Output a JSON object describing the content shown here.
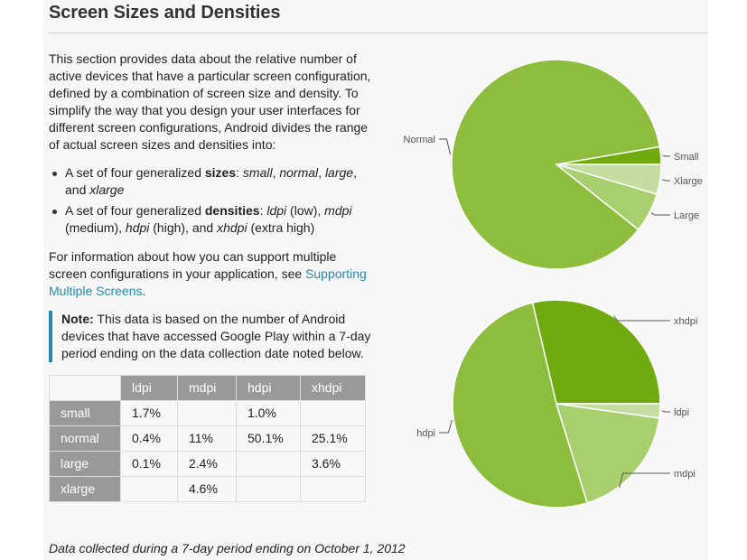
{
  "section": {
    "title": "Screen Sizes and Densities",
    "intro": "This section provides data about the relative number of active devices that have a particular screen configuration, defined by a combination of screen size and density. To simplify the way that you design your user interfaces for different screen configurations, Android divides the range of actual screen sizes and densities into:",
    "bullets": [
      {
        "prefix": "A set of four generalized ",
        "bold": "sizes",
        "rest_parts": [
          ": ",
          "small",
          ", ",
          "normal",
          ", ",
          "large",
          ", and ",
          "xlarge"
        ]
      },
      {
        "prefix": "A set of four generalized ",
        "bold": "densities",
        "rest_parts": [
          ": ",
          "ldpi",
          " (low), ",
          "mdpi",
          " (medium), ",
          "hdpi",
          " (high), and ",
          "xhdpi",
          " (extra high)"
        ]
      }
    ],
    "support_text": "For information about how you can support multiple screen configurations in your application, see ",
    "support_link": "Supporting Multiple Screens",
    "support_end": ".",
    "note_label": "Note:",
    "note_text": " This data is based on the number of Android devices that have accessed Google Play within a 7-day period ending on the data collection date noted below.",
    "caption": "Data collected during a 7-day period ending on October 1, 2012"
  },
  "table": {
    "columns": [
      "",
      "ldpi",
      "mdpi",
      "hdpi",
      "xhdpi"
    ],
    "rows": [
      {
        "label": "small",
        "cells": [
          "1.7%",
          "",
          "1.0%",
          ""
        ]
      },
      {
        "label": "normal",
        "cells": [
          "0.4%",
          "11%",
          "50.1%",
          "25.1%"
        ]
      },
      {
        "label": "large",
        "cells": [
          "0.1%",
          "2.4%",
          "",
          "3.6%"
        ]
      },
      {
        "label": "xlarge",
        "cells": [
          "",
          "4.6%",
          "",
          ""
        ]
      }
    ]
  },
  "colors": {
    "link": "#258aaf",
    "table_header": "#999999",
    "slice_dark": "#6fab0f",
    "slice_main": "#8cbd3c",
    "slice_light": "#a8cf6e",
    "slice_lighter": "#c3dea0"
  },
  "chart_data": [
    {
      "type": "pie",
      "title": "Screen sizes",
      "categories": [
        "Small",
        "Normal",
        "Large",
        "Xlarge"
      ],
      "values": [
        2.7,
        86.6,
        6.1,
        4.6
      ],
      "colors": [
        "#6fab0f",
        "#8cbd3c",
        "#a8cf6e",
        "#c3dea0"
      ],
      "legend": "none (callout labels)"
    },
    {
      "type": "pie",
      "title": "Screen densities",
      "categories": [
        "xhdpi",
        "hdpi",
        "mdpi",
        "ldpi"
      ],
      "values": [
        28.7,
        51.1,
        18.0,
        2.2
      ],
      "colors": [
        "#6fab0f",
        "#8cbd3c",
        "#a8cf6e",
        "#c3dea0"
      ],
      "legend": "none (callout labels)"
    }
  ]
}
